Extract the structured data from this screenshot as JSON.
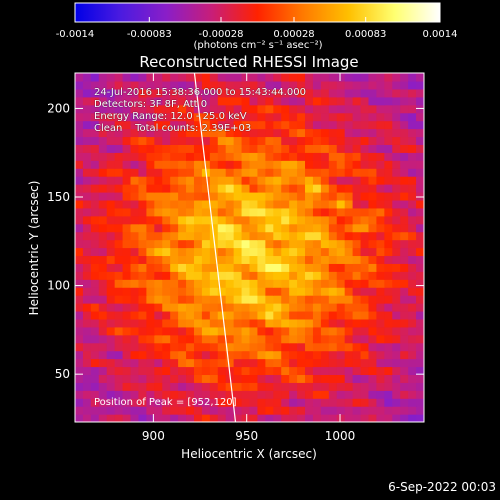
{
  "chart_data": {
    "type": "heatmap",
    "title": "Reconstructed RHESSI Image",
    "xlabel": "Heliocentric X (arcsec)",
    "ylabel": "Heliocentric Y (arcsec)",
    "xlim": [
      858,
      1045
    ],
    "ylim": [
      23,
      220
    ],
    "xticks": [
      900,
      950,
      1000
    ],
    "yticks": [
      50,
      100,
      150,
      200
    ],
    "colorbar": {
      "label": "(photons cm⁻² s⁻¹ asec⁻²)",
      "min": -0.0014,
      "max": 0.0014,
      "ticks": [
        "-0.0014",
        "-0.00083",
        "-0.00028",
        "0.00028",
        "0.00083",
        "0.0014"
      ],
      "colors": [
        "#0000e6",
        "#4b1be0",
        "#8a1ec8",
        "#c81e78",
        "#ff2200",
        "#ff7a00",
        "#ffc000",
        "#ffff70",
        "#ffffff"
      ]
    },
    "peak": {
      "x": 952,
      "y": 120
    },
    "limb_crossing_x": [
      944,
      922
    ],
    "annotations": [
      "24-Jul-2016 15:38:36.000 to 15:43:44.000",
      "Detectors: 3F 8F, Att 0",
      "Energy Range: 12.0 - 25.0 keV",
      "Clean    Total counts: 2.39E+03"
    ],
    "peak_label": "Position of Peak = [952,120]"
  },
  "footer_date": "6-Sep-2022 00:03"
}
